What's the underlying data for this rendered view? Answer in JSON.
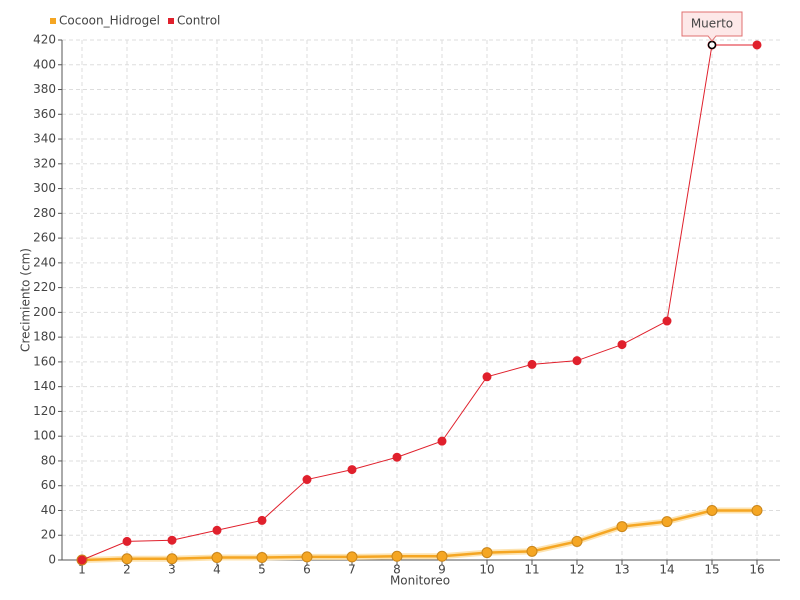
{
  "chart_data": {
    "type": "line",
    "x_label": "Monitoreo",
    "y_label": "Crecimiento (cm)",
    "categories": [
      "1",
      "2",
      "3",
      "4",
      "5",
      "6",
      "7",
      "8",
      "9",
      "10",
      "11",
      "12",
      "13",
      "14",
      "15",
      "16"
    ],
    "series": [
      {
        "name": "Cocoon_Hidrogel",
        "color": "#f5a623",
        "values": [
          0,
          1,
          1,
          2,
          2,
          2.5,
          2.5,
          3,
          3,
          6,
          7,
          15,
          27,
          31,
          40,
          40
        ]
      },
      {
        "name": "Control",
        "color": "#e0202c",
        "values": [
          0,
          15,
          16,
          24,
          32,
          65,
          73,
          83,
          96,
          148,
          158,
          161,
          174,
          193,
          416,
          416
        ]
      }
    ],
    "ylim": [
      0,
      420
    ],
    "yticks": [
      0,
      20,
      40,
      60,
      80,
      100,
      120,
      140,
      160,
      180,
      200,
      220,
      240,
      260,
      280,
      300,
      320,
      340,
      360,
      380,
      400,
      420
    ],
    "grid": true,
    "legend": "top-left",
    "annotations": [
      {
        "text": "Muerto",
        "x": "15",
        "series": "Control"
      }
    ]
  }
}
